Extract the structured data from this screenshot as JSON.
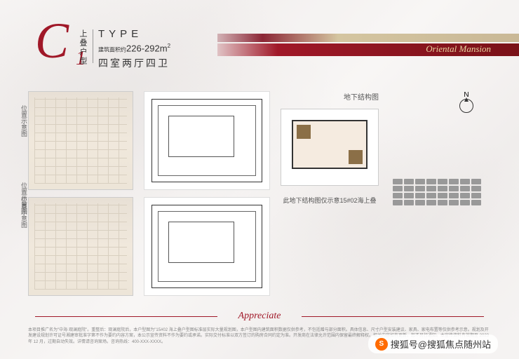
{
  "header": {
    "type_letter": "C",
    "type_number": "1",
    "vertical_label": "上叠户型",
    "type_label": "TYPE",
    "area_prefix": "建筑面积约",
    "area_value": "226-292",
    "area_unit": "m",
    "rooms": "四室两厅四卫",
    "mansion_text": "Oriental Mansion"
  },
  "colors": {
    "accent": "#a01828",
    "bar_gold": "#c9b896",
    "bar_red": "#8b1520",
    "bg": "#f5f3f2"
  },
  "plans": {
    "col2_label_top": "位置示意图",
    "col2_label_bottom": "位置示意图",
    "col3_label": "地下结构图",
    "col3_caption": "此地下结构图仅示意15#02海上叠",
    "col4_label": "位置示意图",
    "compass": "N"
  },
  "parking_count": 32,
  "footer": {
    "appreciate": "Appreciate",
    "disclaimer": "本项目推广名为\"中海·观澜庭院\"。重整后：观澜庭院后，本户型图为\"15#02 海上叠户型图标准层实际大量规划图，本户型图内建筑面积数据仅供参考，不包括赠与部分面积。具体信息、尺寸户型安装建议、家具、家电布置等仅供参考示意。规划及开发建设规划许可证号湘建审批准字第不作为要约内容方案，本公示宣传资料不作为要约或承诺。实际交付标准以双方签订的购房合同约定为准。开发商在法律允许范围内保留最终解释权。相关内容如有更新，恕不另行通知。本宣传资料有效期至 2023 年 12 月，过期自动失效。详情请咨询案场。咨询热线：400-XXX-XXXX。"
  },
  "watermark": {
    "icon": "S",
    "text": "搜狐号@搜狐焦点随州站"
  }
}
